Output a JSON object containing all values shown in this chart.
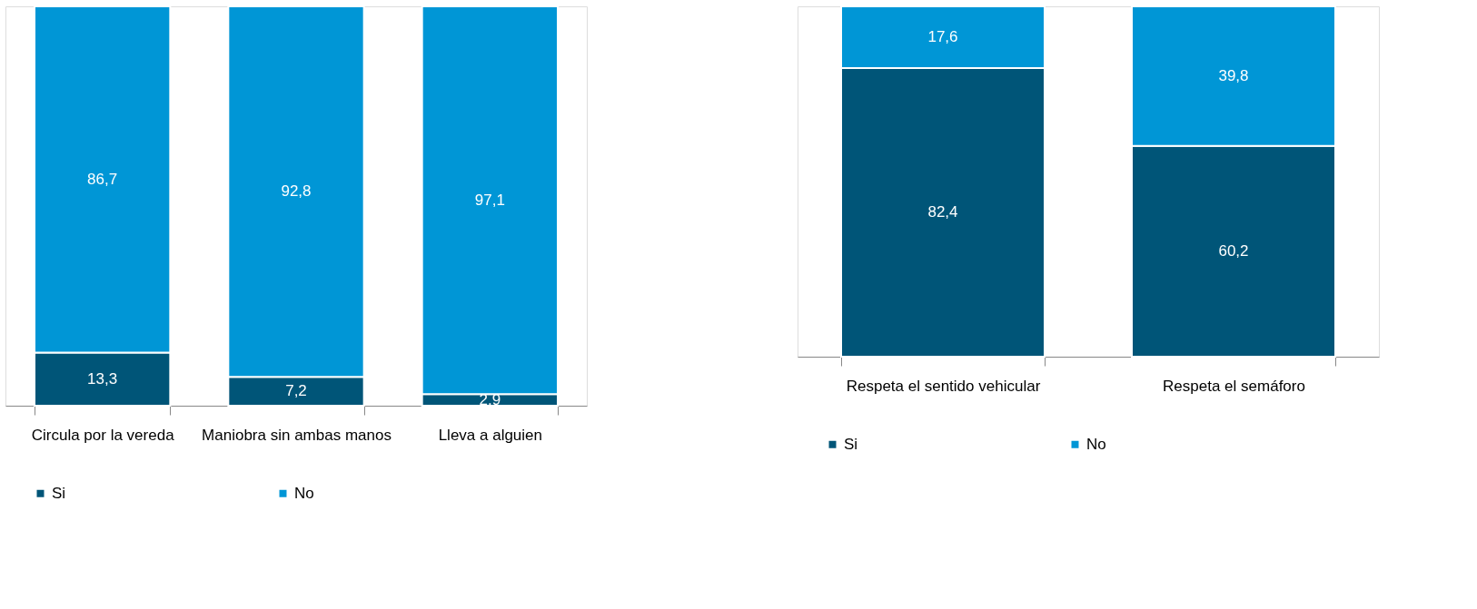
{
  "chart_data": [
    {
      "type": "bar",
      "stacked": true,
      "categories": [
        "Circula por la vereda",
        "Maniobra sin ambas manos",
        "Lleva a alguien"
      ],
      "legend": "bottom",
      "tick_labels": "x",
      "series": [
        {
          "name": "Si",
          "color": "#005578",
          "values": [
            13.3,
            7.2,
            2.9
          ],
          "value_labels": [
            "13,3",
            "7,2",
            "2,9"
          ]
        },
        {
          "name": "No",
          "color": "#0096d6",
          "values": [
            86.7,
            92.8,
            97.1
          ],
          "value_labels": [
            "86,7",
            "92,8",
            "97,1"
          ]
        }
      ]
    },
    {
      "type": "bar",
      "stacked": true,
      "categories": [
        "Respeta el sentido vehicular",
        "Respeta el semáforo"
      ],
      "legend": "bottom",
      "tick_labels": "x",
      "series": [
        {
          "name": "Si",
          "color": "#005578",
          "values": [
            82.4,
            60.2
          ],
          "value_labels": [
            "82,4",
            "60,2"
          ]
        },
        {
          "name": "No",
          "color": "#0096d6",
          "values": [
            17.6,
            39.8
          ],
          "value_labels": [
            "17,6",
            "39,8"
          ]
        }
      ]
    }
  ]
}
